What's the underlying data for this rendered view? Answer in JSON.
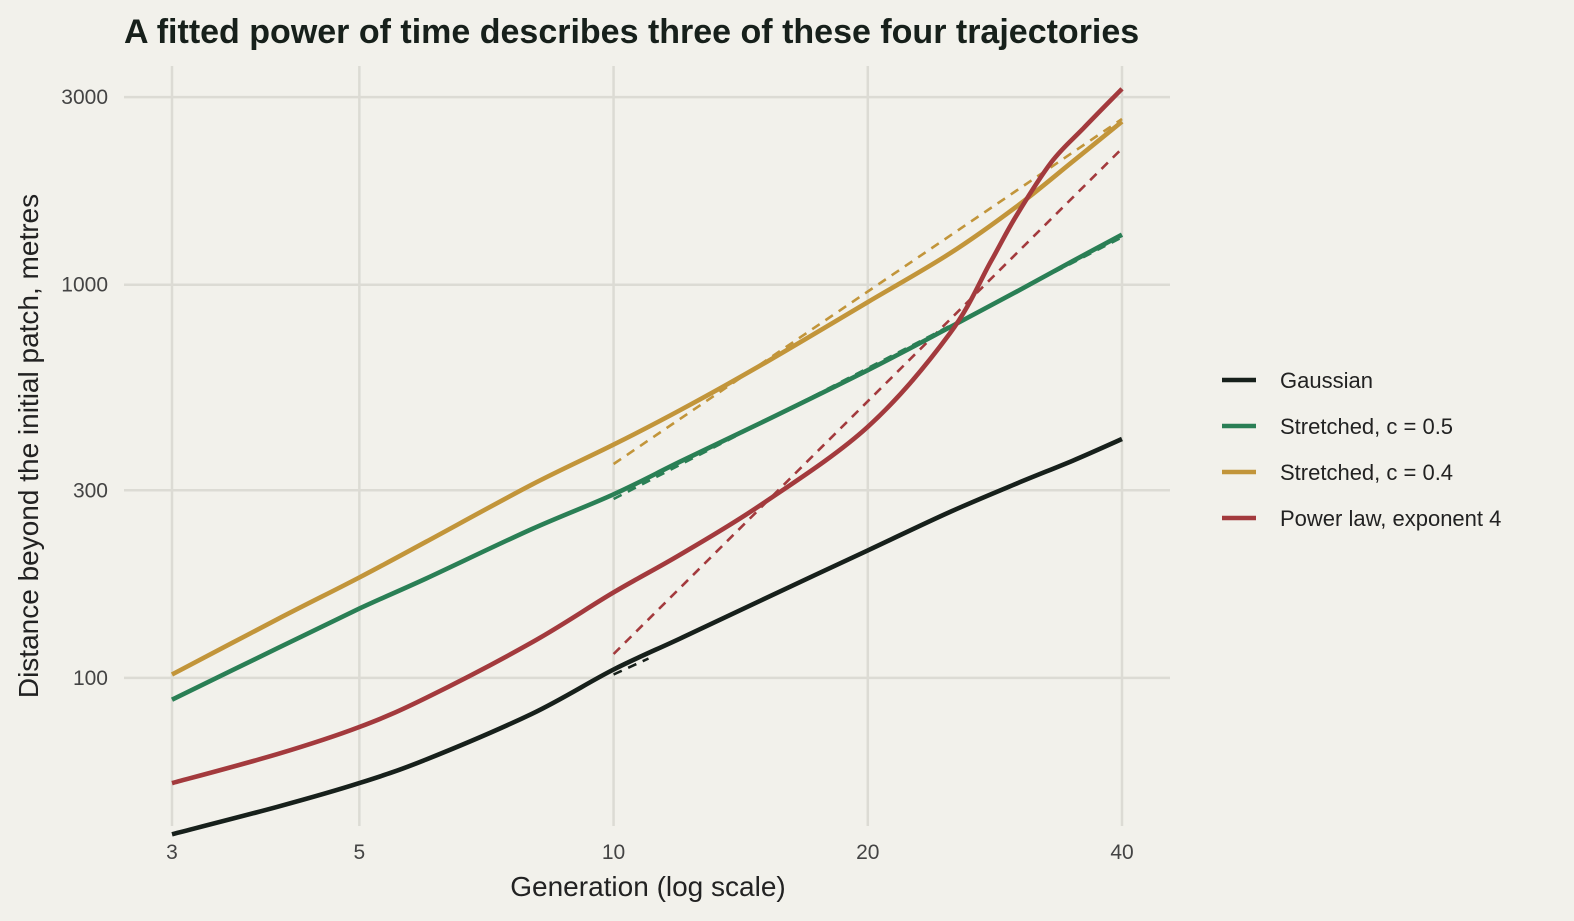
{
  "chart_data": {
    "type": "line",
    "title": "A fitted power of time describes three of these four trajectories",
    "xlabel": "Generation (log scale)",
    "ylabel": "Distance beyond the initial patch, metres",
    "xscale": "log",
    "yscale": "log",
    "xlim": [
      3,
      40
    ],
    "ylim": [
      42,
      3600
    ],
    "xticks": [
      3,
      5,
      10,
      20,
      40
    ],
    "xtick_labels": [
      "3",
      "5",
      "10",
      "20",
      "40"
    ],
    "yticks": [
      100,
      300,
      1000,
      3000
    ],
    "ytick_labels": [
      "100",
      "300",
      "1000",
      "3000"
    ],
    "grid": true,
    "legend_position": "right",
    "series": [
      {
        "name": "Gaussian",
        "color": "#17201b",
        "x": [
          3,
          4,
          5,
          6,
          8,
          10,
          12,
          15,
          20,
          25,
          30,
          35,
          40
        ],
        "y": [
          40,
          47,
          54,
          62,
          81,
          105,
          126,
          158,
          211,
          264,
          312,
          357,
          405
        ]
      },
      {
        "name": "Stretched, c = 0.5",
        "color": "#2a7f55",
        "x": [
          3,
          4,
          5,
          6,
          8,
          10,
          12,
          15,
          20,
          25,
          30,
          35,
          40
        ],
        "y": [
          88,
          119,
          150,
          179,
          239,
          293,
          355,
          447,
          606,
          779,
          960,
          1150,
          1340
        ]
      },
      {
        "name": "Stretched, c = 0.4",
        "color": "#c2953a",
        "x": [
          3,
          4,
          5,
          6,
          8,
          10,
          12,
          15,
          20,
          25,
          30,
          35,
          40
        ],
        "y": [
          102,
          141,
          180,
          222,
          310,
          392,
          480,
          627,
          903,
          1200,
          1580,
          2060,
          2600
        ]
      },
      {
        "name": "Power law, exponent 4",
        "color": "#a33a3d",
        "x": [
          3,
          4,
          5,
          6,
          8,
          10,
          12,
          15,
          20,
          25,
          28,
          30,
          33,
          36,
          40
        ],
        "y": [
          54,
          64,
          75,
          89,
          123,
          165,
          206,
          277,
          435,
          750,
          1150,
          1500,
          2050,
          2500,
          3150
        ]
      }
    ],
    "fitted_lines": [
      {
        "series": "Gaussian",
        "style": "dashed",
        "x": [
          10,
          11
        ],
        "y": [
          102,
          112
        ]
      },
      {
        "series": "Stretched, c = 0.5",
        "style": "dashed",
        "x": [
          10,
          40
        ],
        "y": [
          285,
          1320
        ]
      },
      {
        "series": "Stretched, c = 0.4",
        "style": "dashed",
        "x": [
          10,
          40
        ],
        "y": [
          350,
          2640
        ]
      },
      {
        "series": "Power law, exponent 4",
        "style": "dashed",
        "x": [
          10,
          40
        ],
        "y": [
          115,
          2220
        ]
      }
    ]
  }
}
